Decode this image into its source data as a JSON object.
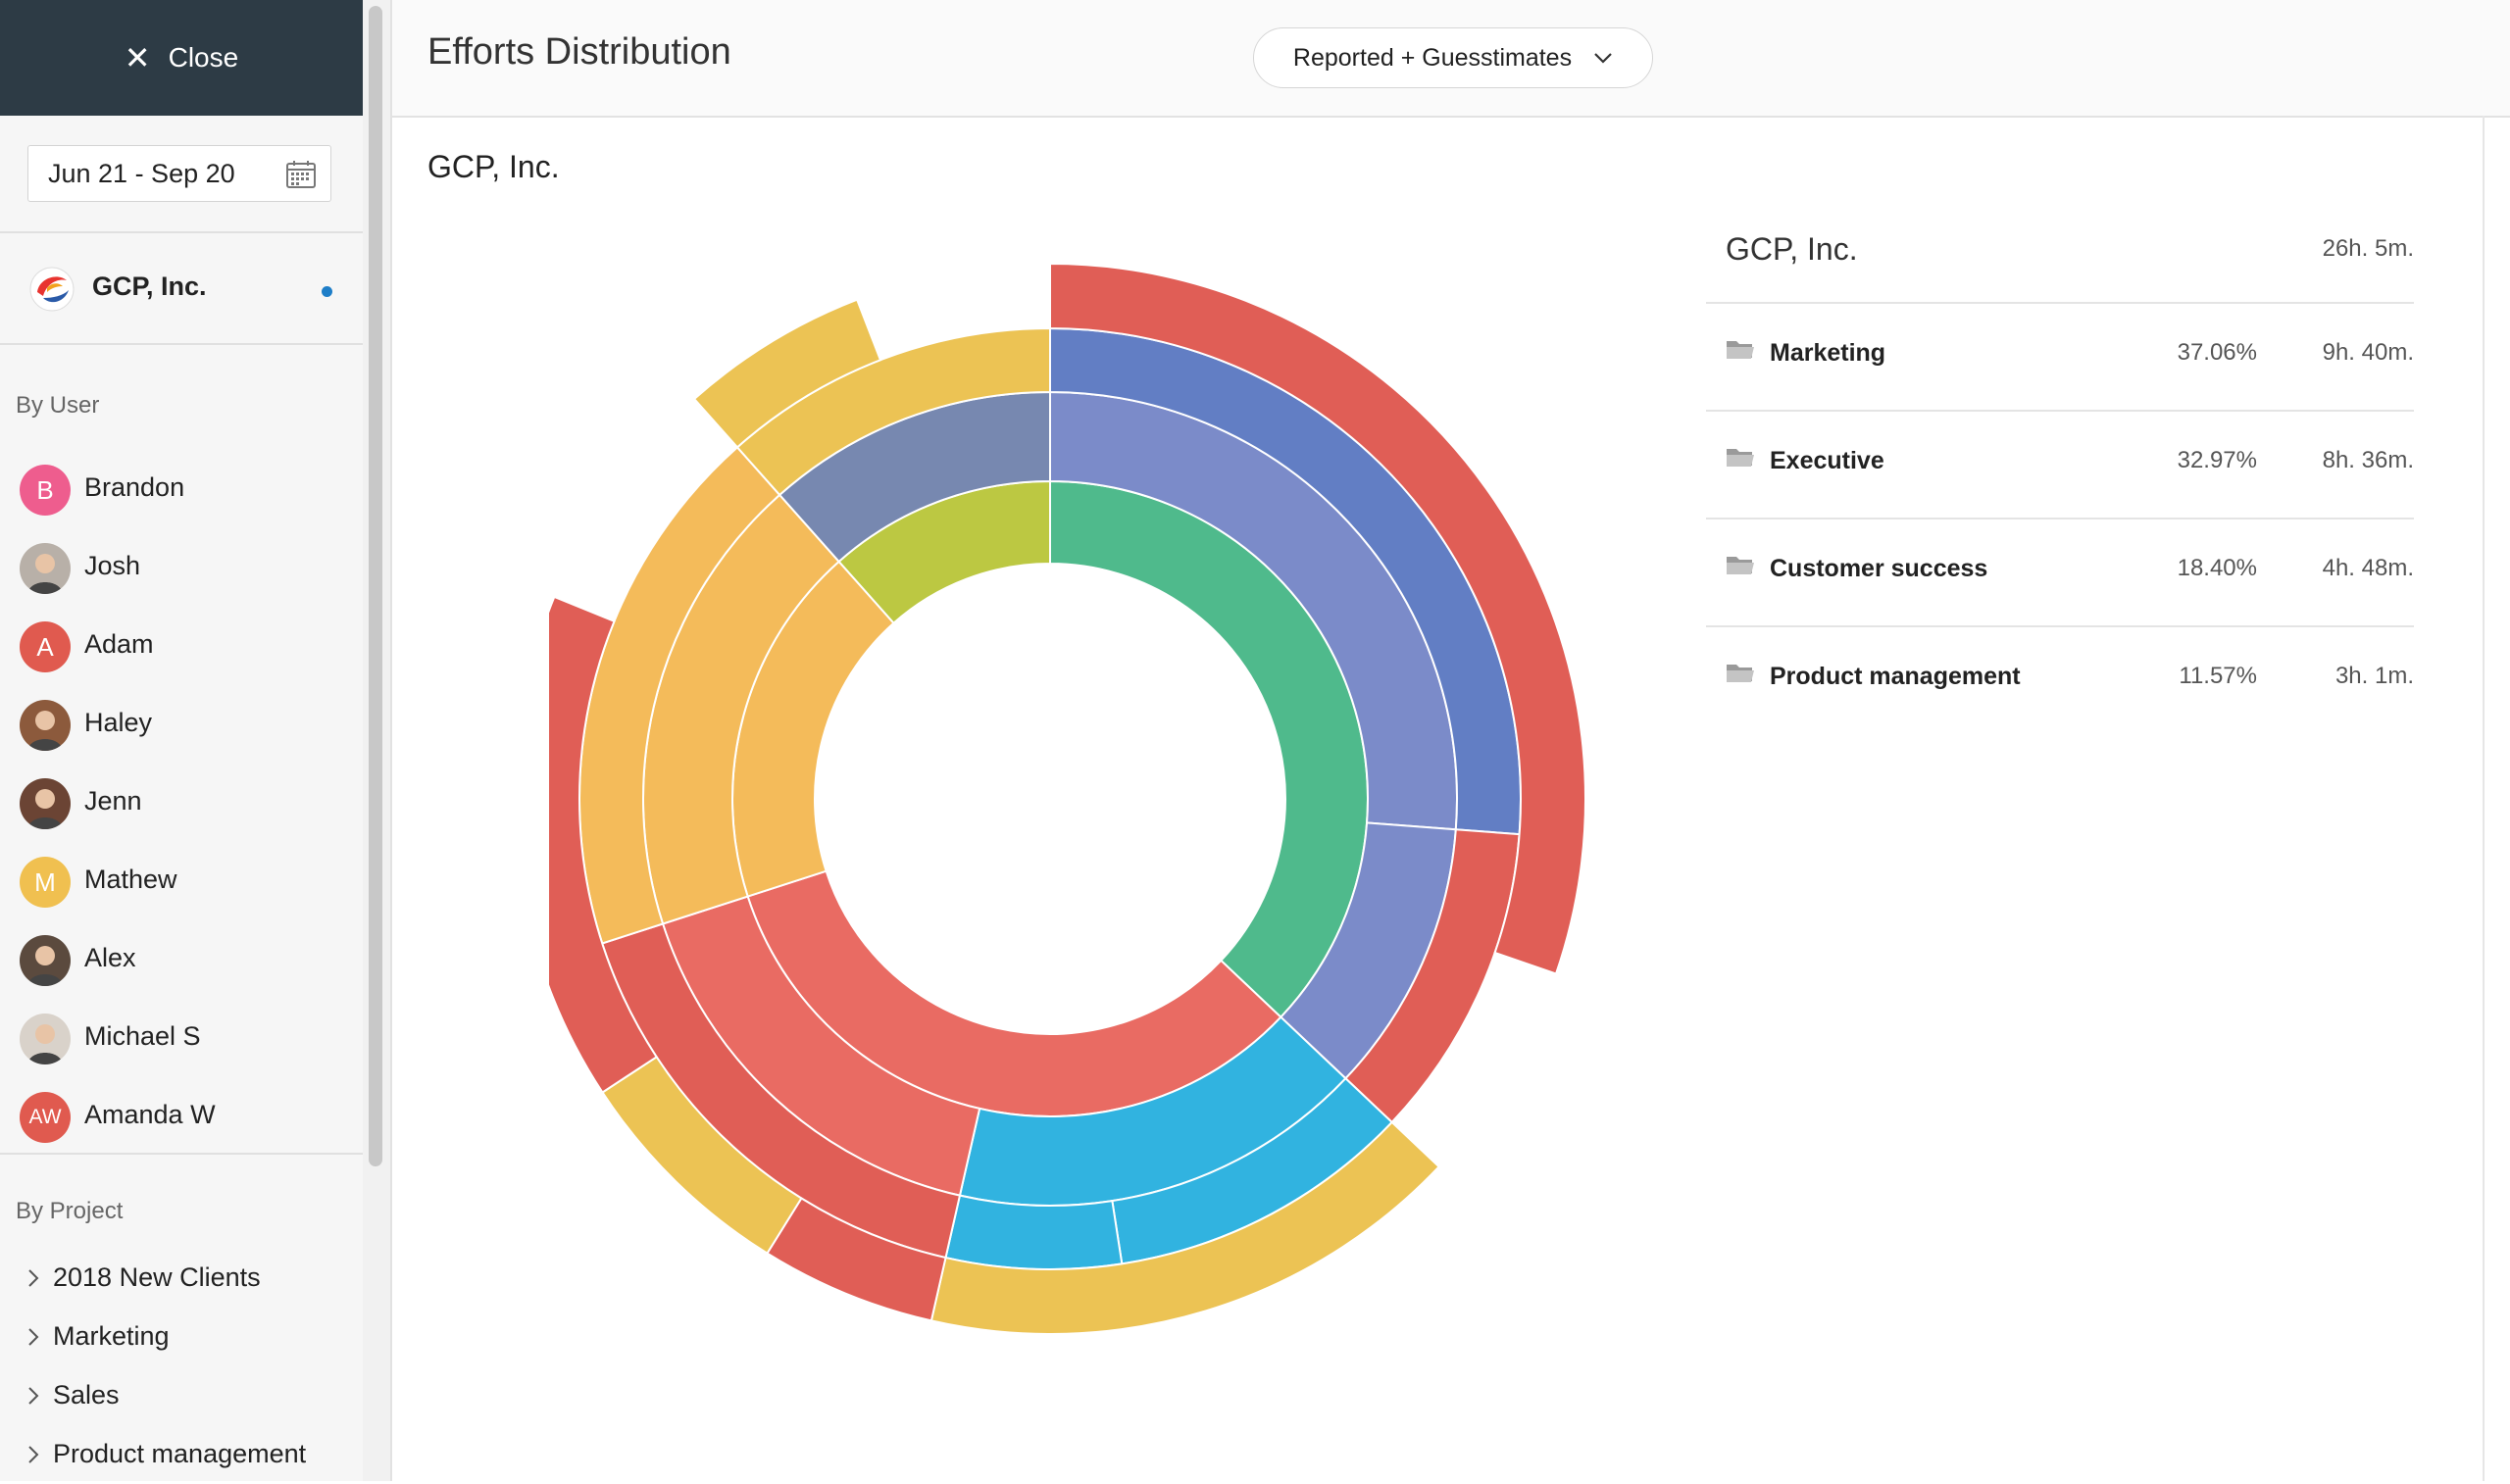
{
  "sidebar": {
    "close_label": "Close",
    "date_range": "Jun 21 - Sep 20",
    "client_name": "GCP, Inc.",
    "by_user_label": "By User",
    "users": [
      {
        "name": "Brandon",
        "initials": "B",
        "color": "#ee5d8e",
        "photo": false
      },
      {
        "name": "Josh",
        "initials": "",
        "color": "#b8b0a8",
        "photo": true
      },
      {
        "name": "Adam",
        "initials": "A",
        "color": "#e05a4f",
        "photo": false
      },
      {
        "name": "Haley",
        "initials": "",
        "color": "#8c5a3c",
        "photo": true
      },
      {
        "name": "Jenn",
        "initials": "",
        "color": "#6b4434",
        "photo": true
      },
      {
        "name": "Mathew",
        "initials": "M",
        "color": "#f0c050",
        "photo": false
      },
      {
        "name": "Alex",
        "initials": "",
        "color": "#5b4a3e",
        "photo": true
      },
      {
        "name": "Michael S",
        "initials": "",
        "color": "#d9d2ca",
        "photo": true
      },
      {
        "name": "Amanda W",
        "initials": "AW",
        "color": "#e05a4f",
        "photo": false
      }
    ],
    "by_project_label": "By Project",
    "projects": [
      "2018 New Clients",
      "Marketing",
      "Sales",
      "Product management"
    ]
  },
  "header": {
    "title": "Efforts Distribution",
    "mode_select": "Reported + Guesstimates"
  },
  "main": {
    "client_heading": "GCP, Inc."
  },
  "legend": {
    "title": "GCP, Inc.",
    "total": "26h. 5m.",
    "rows": [
      {
        "name": "Marketing",
        "percent": "37.06%",
        "time": "9h. 40m."
      },
      {
        "name": "Executive",
        "percent": "32.97%",
        "time": "8h. 36m."
      },
      {
        "name": "Customer success",
        "percent": "18.40%",
        "time": "4h. 48m."
      },
      {
        "name": "Product management",
        "percent": "11.57%",
        "time": "3h. 1m."
      }
    ]
  },
  "chart_data": {
    "type": "sunburst",
    "title": "",
    "unit": "percent of total effort",
    "rings": [
      {
        "level": 1,
        "segments": [
          {
            "color": "#4fba8c",
            "start": 0.0,
            "value": 37.06
          },
          {
            "color": "#e96b63",
            "start": 37.06,
            "value": 32.97
          },
          {
            "color": "#f4bb5a",
            "start": 70.03,
            "value": 18.4
          },
          {
            "color": "#bcc842",
            "start": 88.43,
            "value": 11.57
          }
        ]
      },
      {
        "level": 2,
        "segments": [
          {
            "color": "#7b8bc9",
            "start": 0.0,
            "value": 26.2
          },
          {
            "color": "#7b8bc9",
            "start": 26.2,
            "value": 10.86
          },
          {
            "color": "#31b3e0",
            "start": 37.06,
            "value": 16.5
          },
          {
            "color": "#e96b63",
            "start": 53.56,
            "value": 16.47
          },
          {
            "color": "#f4bb5a",
            "start": 70.03,
            "value": 18.4
          },
          {
            "color": "#7788b0",
            "start": 88.43,
            "value": 11.57
          }
        ]
      },
      {
        "level": 3,
        "segments": [
          {
            "color": "#627ec4",
            "start": 0.0,
            "value": 26.2
          },
          {
            "color": "#e05e56",
            "start": 26.2,
            "value": 10.86
          },
          {
            "color": "#31b3e0",
            "start": 37.06,
            "value": 10.5
          },
          {
            "color": "#31b3e0",
            "start": 47.56,
            "value": 6.0
          },
          {
            "color": "#e05e56",
            "start": 53.56,
            "value": 16.47
          },
          {
            "color": "#f4bb5a",
            "start": 70.03,
            "value": 18.4
          },
          {
            "color": "#ecc354",
            "start": 88.43,
            "value": 11.57
          }
        ]
      },
      {
        "level": 4,
        "segments": [
          {
            "color": "#e05e56",
            "start": 0.0,
            "value": 30.3
          },
          {
            "color": "#ecc354",
            "start": 37.06,
            "value": 16.5
          },
          {
            "color": "#e05e56",
            "start": 53.56,
            "value": 5.3
          },
          {
            "color": "#ecc354",
            "start": 58.86,
            "value": 6.9
          },
          {
            "color": "#e05e56",
            "start": 65.76,
            "value": 15.4
          },
          {
            "color": "#ecc354",
            "start": 88.43,
            "value": 5.7
          }
        ]
      }
    ]
  }
}
